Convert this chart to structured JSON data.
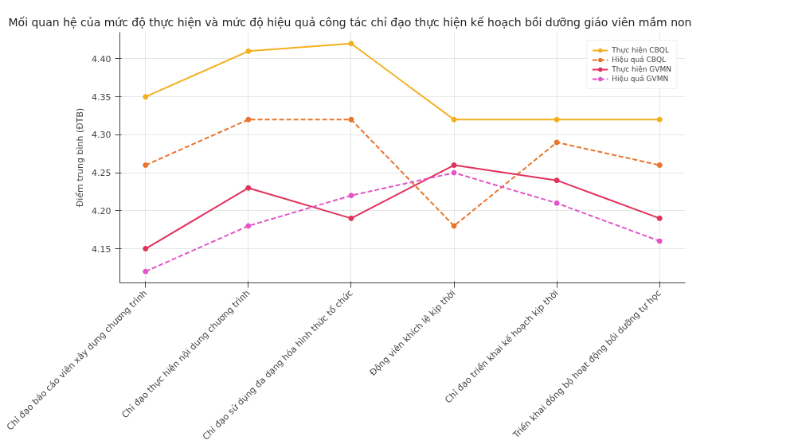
{
  "chart_data": {
    "type": "line",
    "title": "Mối quan hệ của mức độ thực hiện và mức độ hiệu quả công tác chỉ đạo thực hiện kế hoạch bồi dưỡng giáo viên mầm non",
    "ylabel": "Điểm trung bình (ĐTB)",
    "categories": [
      "Chỉ đạo báo cáo viên xây dựng chương trình",
      "Chỉ đạo thực hiện nội dung chương trình",
      "Chỉ đạo sử dụng đa dạng hóa hình thức tổ chức",
      "Động viên khích lệ kịp thời",
      "Chỉ đạo triển khai kế hoạch kịp thời",
      "Triển khai đồng bộ hoạt động bồi dưỡng tự học"
    ],
    "series": [
      {
        "name": "Thực hiện CBQL",
        "color": "#f2b01e",
        "line_style": "solid",
        "values": [
          4.35,
          4.41,
          4.42,
          4.32,
          4.32,
          4.32
        ]
      },
      {
        "name": "Hiệu quả CBQL",
        "color": "#e9742b",
        "line_style": "dashed",
        "values": [
          4.26,
          4.32,
          4.32,
          4.18,
          4.29,
          4.26
        ]
      },
      {
        "name": "Thực hiện GVMN",
        "color": "#e2315c",
        "line_style": "solid",
        "values": [
          4.15,
          4.23,
          4.19,
          4.26,
          4.24,
          4.19
        ]
      },
      {
        "name": "Hiệu quả GVMN",
        "color": "#e356c8",
        "line_style": "dashed",
        "values": [
          4.12,
          4.18,
          4.22,
          4.25,
          4.21,
          4.16
        ]
      }
    ],
    "ylim": [
      4.105,
      4.435
    ],
    "yticks": [
      {
        "value": 4.15,
        "label": "4.15"
      },
      {
        "value": 4.2,
        "label": "4.20"
      },
      {
        "value": 4.25,
        "label": "4.25"
      },
      {
        "value": 4.3,
        "label": "4.30"
      },
      {
        "value": 4.35,
        "label": "4.35"
      },
      {
        "value": 4.4,
        "label": "4.40"
      }
    ],
    "grid": true,
    "legend": "top right",
    "marker": "circle"
  }
}
